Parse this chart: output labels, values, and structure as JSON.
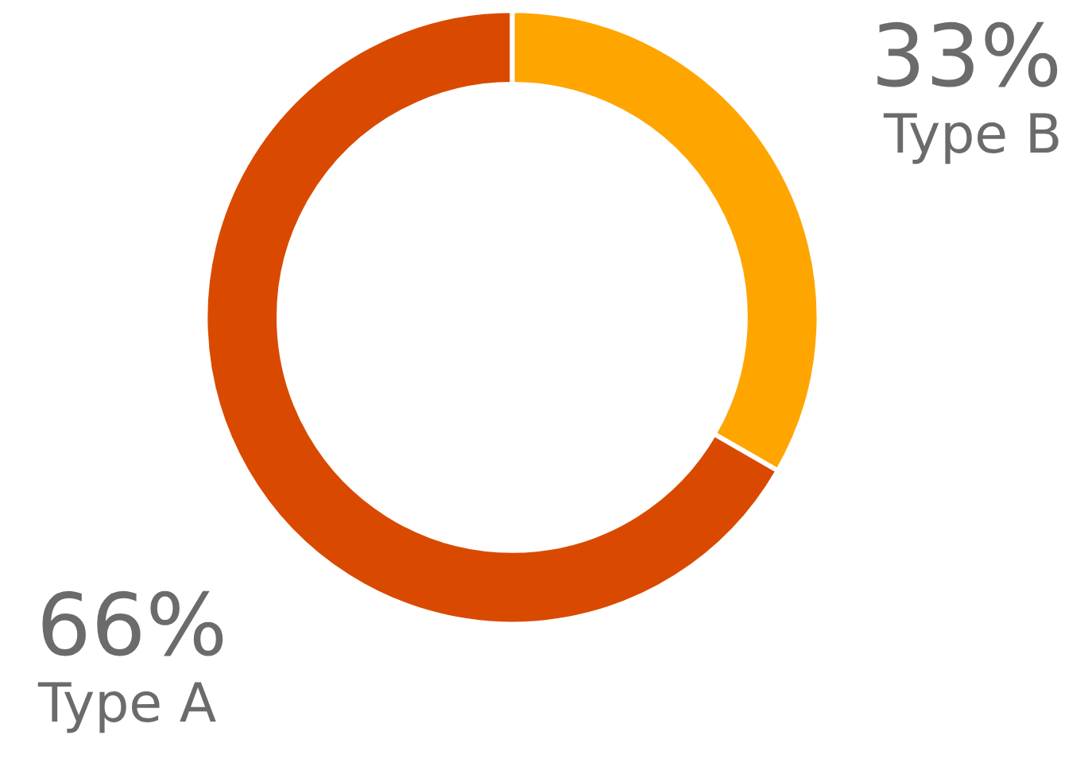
{
  "chart_data": {
    "type": "donut",
    "categories": [
      "Type B",
      "Type A"
    ],
    "values": [
      33,
      66
    ],
    "value_labels": [
      "33%",
      "66%"
    ],
    "colors": [
      "#ffa500",
      "#d94a00"
    ],
    "legend": false
  }
}
